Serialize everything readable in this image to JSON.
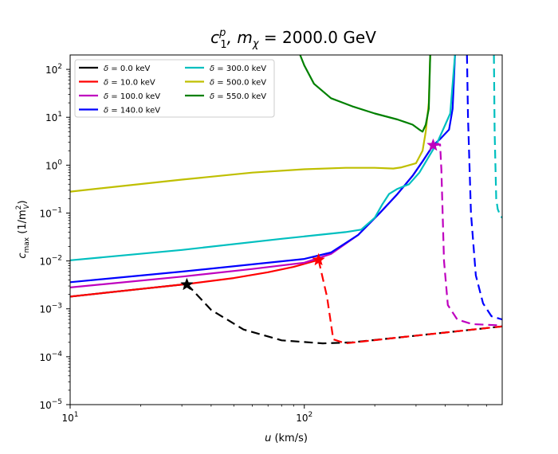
{
  "chart_data": {
    "type": "line",
    "title_prefix": "c",
    "title_sup": "p",
    "title_sub": "1",
    "title_mid": ", m",
    "title_mid_sub": "χ",
    "title_value": " = 2000.0 GeV",
    "xlabel_var": "u",
    "xlabel_unit": " (km/s)",
    "ylabel_var": "c",
    "ylabel_sub": "max",
    "ylabel_unit_open": " (1/m",
    "ylabel_unit_sup": "2",
    "ylabel_unit_sub": "V",
    "ylabel_unit_close": ")",
    "xscale": "log",
    "yscale": "log",
    "xlim": [
      10,
      700
    ],
    "ylim": [
      1e-05,
      200
    ],
    "x_ticks": [
      {
        "value": 10,
        "base": "10",
        "exp": "1"
      },
      {
        "value": 100,
        "base": "10",
        "exp": "2"
      }
    ],
    "y_ticks": [
      {
        "value": 1e-05,
        "base": "10",
        "exp": "−5"
      },
      {
        "value": 0.0001,
        "base": "10",
        "exp": "−4"
      },
      {
        "value": 0.001,
        "base": "10",
        "exp": "−3"
      },
      {
        "value": 0.01,
        "base": "10",
        "exp": "−2"
      },
      {
        "value": 0.1,
        "base": "10",
        "exp": "−1"
      },
      {
        "value": 1,
        "base": "10",
        "exp": "0"
      },
      {
        "value": 10,
        "base": "10",
        "exp": "1"
      },
      {
        "value": 100,
        "base": "10",
        "exp": "2"
      }
    ],
    "legend_location": "top-left",
    "legend_prefix": "δ = ",
    "series": [
      {
        "name": "δ = 0.0 keV",
        "label_value": "0.0 keV",
        "color": "#000000",
        "solid": [
          [
            10,
            0.0018
          ],
          [
            20,
            0.0026
          ],
          [
            31.5,
            0.0033
          ]
        ],
        "dashed": [
          [
            31.5,
            0.0033
          ],
          [
            40,
            0.00095
          ],
          [
            55,
            0.00037
          ],
          [
            80,
            0.00022
          ],
          [
            120,
            0.00019
          ],
          [
            160,
            0.0002
          ],
          [
            250,
            0.00025
          ],
          [
            400,
            0.00032
          ],
          [
            700,
            0.00043
          ]
        ],
        "marker": [
          31.5,
          0.0032
        ]
      },
      {
        "name": "δ = 10.0 keV",
        "label_value": "10.0 keV",
        "color": "#ff0000",
        "solid": [
          [
            10,
            0.0018
          ],
          [
            20,
            0.0026
          ],
          [
            31.5,
            0.0033
          ],
          [
            50,
            0.0044
          ],
          [
            70,
            0.0058
          ],
          [
            90,
            0.0075
          ],
          [
            115,
            0.0105
          ]
        ],
        "dashed": [
          [
            115,
            0.0105
          ],
          [
            125,
            0.0018
          ],
          [
            133,
            0.00023
          ],
          [
            150,
            0.00019
          ],
          [
            250,
            0.00025
          ],
          [
            400,
            0.00032
          ],
          [
            700,
            0.00043
          ]
        ],
        "marker": [
          115,
          0.0105
        ]
      },
      {
        "name": "δ = 100.0 keV",
        "label_value": "100.0 keV",
        "color": "#bf00bf",
        "solid": [
          [
            10,
            0.0028
          ],
          [
            30,
            0.0047
          ],
          [
            60,
            0.0068
          ],
          [
            100,
            0.0092
          ],
          [
            130,
            0.014
          ],
          [
            170,
            0.035
          ],
          [
            210,
            0.1
          ],
          [
            250,
            0.25
          ],
          [
            290,
            0.6
          ],
          [
            320,
            1.2
          ],
          [
            355,
            2.6
          ]
        ],
        "dashed": [
          [
            355,
            2.6
          ],
          [
            380,
            2.7
          ],
          [
            385,
            0.8
          ],
          [
            395,
            0.01
          ],
          [
            410,
            0.0012
          ],
          [
            450,
            0.0006
          ],
          [
            520,
            0.00048
          ],
          [
            700,
            0.00045
          ]
        ],
        "marker": [
          355,
          2.6
        ]
      },
      {
        "name": "δ = 140.0 keV",
        "label_value": "140.0 keV",
        "color": "#0000ff",
        "solid": [
          [
            10,
            0.0036
          ],
          [
            30,
            0.006
          ],
          [
            60,
            0.0085
          ],
          [
            100,
            0.011
          ],
          [
            130,
            0.015
          ],
          [
            170,
            0.035
          ],
          [
            210,
            0.1
          ],
          [
            250,
            0.25
          ],
          [
            290,
            0.6
          ],
          [
            320,
            1.2
          ],
          [
            355,
            2.6
          ],
          [
            380,
            3.5
          ],
          [
            415,
            5.5
          ],
          [
            430,
            15
          ],
          [
            440,
            200
          ]
        ],
        "dashed": [
          [
            495,
            200
          ],
          [
            500,
            10
          ],
          [
            515,
            0.1
          ],
          [
            540,
            0.005
          ],
          [
            580,
            0.0013
          ],
          [
            630,
            0.0007
          ],
          [
            700,
            0.0006
          ]
        ],
        "marker": null
      },
      {
        "name": "δ = 300.0 keV",
        "label_value": "300.0 keV",
        "color": "#00bfbf",
        "solid": [
          [
            10,
            0.0103
          ],
          [
            30,
            0.017
          ],
          [
            80,
            0.029
          ],
          [
            150,
            0.04
          ],
          [
            175,
            0.045
          ],
          [
            200,
            0.08
          ],
          [
            215,
            0.15
          ],
          [
            230,
            0.25
          ],
          [
            250,
            0.32
          ],
          [
            280,
            0.4
          ],
          [
            310,
            0.7
          ],
          [
            340,
            1.5
          ],
          [
            370,
            3
          ],
          [
            400,
            7
          ],
          [
            420,
            12
          ],
          [
            440,
            200
          ]
        ],
        "dashed": [
          [
            645,
            200
          ],
          [
            650,
            5
          ],
          [
            660,
            0.2
          ],
          [
            670,
            0.12
          ],
          [
            690,
            0.085
          ],
          [
            700,
            0.08
          ]
        ],
        "marker": null
      },
      {
        "name": "δ = 500.0 keV",
        "label_value": "500.0 keV",
        "color": "#bfbf00",
        "solid": [
          [
            10,
            0.28
          ],
          [
            30,
            0.5
          ],
          [
            60,
            0.7
          ],
          [
            100,
            0.82
          ],
          [
            150,
            0.88
          ],
          [
            200,
            0.88
          ],
          [
            240,
            0.85
          ],
          [
            260,
            0.9
          ],
          [
            280,
            1.0
          ],
          [
            300,
            1.1
          ],
          [
            320,
            2
          ],
          [
            330,
            5
          ],
          [
            340,
            20
          ],
          [
            345,
            200
          ]
        ],
        "dashed": [],
        "marker": null
      },
      {
        "name": "δ = 550.0 keV",
        "label_value": "550.0 keV",
        "color": "#008000",
        "solid": [
          [
            96,
            200
          ],
          [
            100,
            120
          ],
          [
            110,
            50
          ],
          [
            130,
            25
          ],
          [
            160,
            17
          ],
          [
            200,
            12
          ],
          [
            250,
            9
          ],
          [
            290,
            7
          ],
          [
            310,
            5.5
          ],
          [
            320,
            5
          ],
          [
            330,
            7
          ],
          [
            340,
            15
          ],
          [
            345,
            200
          ]
        ],
        "dashed": [],
        "marker": null
      }
    ]
  }
}
